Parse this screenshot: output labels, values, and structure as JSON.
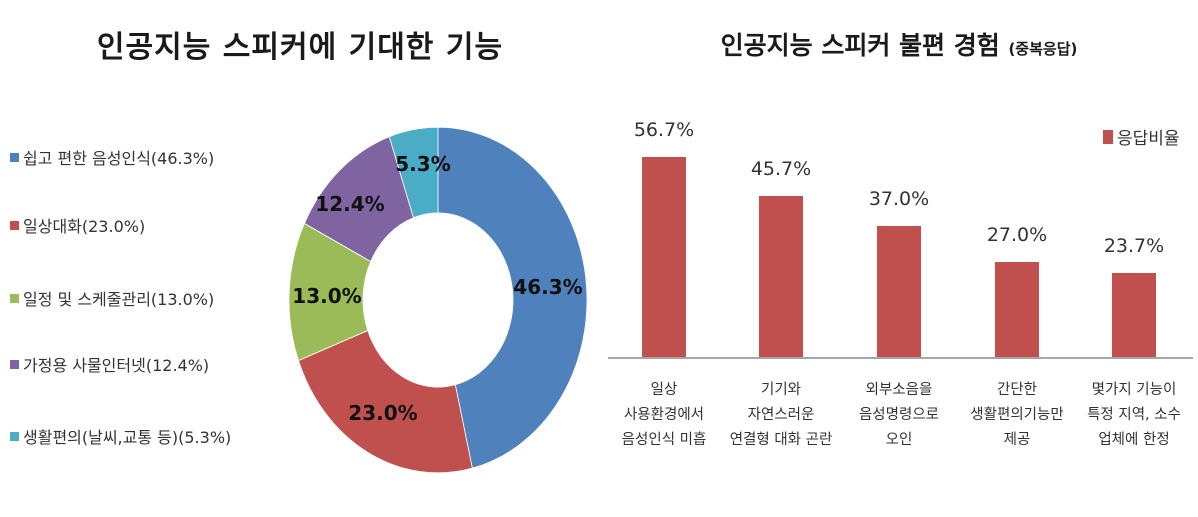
{
  "left_chart": {
    "title": "인공지능 스피커에 기대한 기능",
    "legend": [
      {
        "label": "쉽고 편한 음성인식(46.3%)",
        "color": "#4f81bd"
      },
      {
        "label": "일상대화(23.0%)",
        "color": "#c0504d"
      },
      {
        "label": "일정 및 스케줄관리(13.0%)",
        "color": "#9bbb59"
      },
      {
        "label": "가정용 사물인터넷(12.4%)",
        "color": "#8064a2"
      },
      {
        "label": "생활편의(날씨,교통 등)(5.3%)",
        "color": "#4bacc6"
      }
    ],
    "slice_labels": [
      "46.3%",
      "23.0%",
      "13.0%",
      "12.4%",
      "5.3%"
    ]
  },
  "right_chart": {
    "title": "인공지능 스피커 불편 경험",
    "subtitle": "(중복응답)",
    "legend_label": "응답비율",
    "bar_color": "#c0504d",
    "value_labels": [
      "56.7%",
      "45.7%",
      "37.0%",
      "27.0%",
      "23.7%"
    ],
    "categories": [
      [
        "일상",
        "사용환경에서",
        "음성인식 미흡"
      ],
      [
        "기기와",
        "자연스러운",
        "연결형 대화 곤란"
      ],
      [
        "외부소음을",
        "음성명령으로",
        "오인"
      ],
      [
        "간단한",
        "생활편의기능만",
        "제공"
      ],
      [
        "몇가지 기능이",
        "특정 지역, 소수",
        "업체에 한정"
      ]
    ]
  },
  "chart_data": [
    {
      "type": "pie",
      "subtype": "donut",
      "title": "인공지능 스피커에 기대한 기능",
      "categories": [
        "쉽고 편한 음성인식",
        "일상대화",
        "일정 및 스케줄관리",
        "가정용 사물인터넷",
        "생활편의(날씨,교통 등)"
      ],
      "values": [
        46.3,
        23.0,
        13.0,
        12.4,
        5.3
      ],
      "colors": [
        "#4f81bd",
        "#c0504d",
        "#9bbb59",
        "#8064a2",
        "#4bacc6"
      ],
      "data_labels": [
        "46.3%",
        "23.0%",
        "13.0%",
        "12.4%",
        "5.3%"
      ],
      "legend_position": "left",
      "start_angle": "12 o'clock, clockwise"
    },
    {
      "type": "bar",
      "title": "인공지능 스피커 불편 경험 (중복응답)",
      "categories": [
        "일상 사용환경에서 음성인식 미흡",
        "기기와 자연스러운 연결형 대화 곤란",
        "외부소음을 음성명령으로 오인",
        "간단한 생활편의기능만 제공",
        "몇가지 기능이 특정 지역, 소수 업체에 한정"
      ],
      "series": [
        {
          "name": "응답비율",
          "values": [
            56.7,
            45.7,
            37.0,
            27.0,
            23.7
          ],
          "color": "#c0504d"
        }
      ],
      "data_labels": [
        "56.7%",
        "45.7%",
        "37.0%",
        "27.0%",
        "23.7%"
      ],
      "xlabel": "",
      "ylabel": "",
      "ylim": [
        0,
        60
      ],
      "grid": false,
      "legend_position": "top-right"
    }
  ]
}
